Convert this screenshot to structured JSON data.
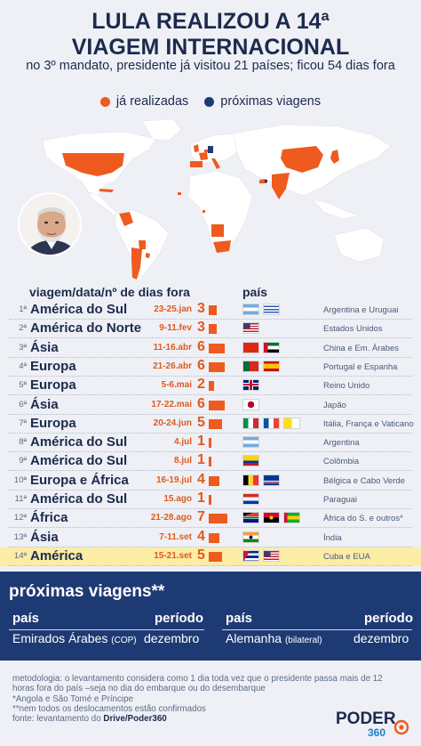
{
  "title_line1": "LULA REALIZOU A 14ª",
  "title_line2": "VIAGEM INTERNACIONAL",
  "subtitle": "no 3º mandato, presidente já visitou 21 países; ficou 54 dias fora",
  "legend": {
    "done": "já realizadas",
    "upcoming": "próximas viagens"
  },
  "colors": {
    "done": "#ef5a1e",
    "upcoming": "#1e3a74",
    "highlight": "#fbeca6"
  },
  "table_head": {
    "left": "viagem/data/nº de dias fora",
    "right": "país"
  },
  "trips": [
    {
      "num": "1ª",
      "dest": "América do Sul",
      "date": "23-25.jan",
      "days": "3",
      "flags": [
        "flag-argentina",
        "flag-uruguay"
      ],
      "country": "Argentina e Uruguai"
    },
    {
      "num": "2ª",
      "dest": "América do Norte",
      "date": "9-11.fev",
      "days": "3",
      "flags": [
        "flag-usa"
      ],
      "country": "Estados Unidos"
    },
    {
      "num": "3ª",
      "dest": "Ásia",
      "date": "11-16.abr",
      "days": "6",
      "flags": [
        "flag-china",
        "flag-uae"
      ],
      "country": "China e Em. Árabes"
    },
    {
      "num": "4ª",
      "dest": "Europa",
      "date": "21-26.abr",
      "days": "6",
      "flags": [
        "flag-portugal",
        "flag-spain"
      ],
      "country": "Portugal e Espanha"
    },
    {
      "num": "5ª",
      "dest": "Europa",
      "date": "5-6.mai",
      "days": "2",
      "flags": [
        "flag-uk"
      ],
      "country": "Reino Unido"
    },
    {
      "num": "6ª",
      "dest": "Ásia",
      "date": "17-22.mai",
      "days": "6",
      "flags": [
        "flag-japan"
      ],
      "country": "Japão"
    },
    {
      "num": "7ª",
      "dest": "Europa",
      "date": "20-24.jun",
      "days": "5",
      "flags": [
        "flag-italy",
        "flag-france",
        "flag-vatican"
      ],
      "country": "Itália, França e Vaticano"
    },
    {
      "num": "8ª",
      "dest": "América do Sul",
      "date": "4.jul",
      "days": "1",
      "flags": [
        "flag-argentina"
      ],
      "country": "Argentina"
    },
    {
      "num": "9ª",
      "dest": "América do Sul",
      "date": "8.jul",
      "days": "1",
      "flags": [
        "flag-colombia"
      ],
      "country": "Colômbia"
    },
    {
      "num": "10ª",
      "dest": "Europa e África",
      "date": "16-19.jul",
      "days": "4",
      "flags": [
        "flag-belgium",
        "flag-cape-verde"
      ],
      "country": "Bélgica e Cabo Verde"
    },
    {
      "num": "11ª",
      "dest": "América do Sul",
      "date": "15.ago",
      "days": "1",
      "flags": [
        "flag-paraguay"
      ],
      "country": "Paraguai"
    },
    {
      "num": "12ª",
      "dest": "África",
      "date": "21-28.ago",
      "days": "7",
      "flags": [
        "flag-south-africa",
        "flag-angola",
        "flag-sao-tome"
      ],
      "country": "África do S. e outros*"
    },
    {
      "num": "13ª",
      "dest": "Ásia",
      "date": "7-11.set",
      "days": "4",
      "flags": [
        "flag-india"
      ],
      "country": "Índia"
    },
    {
      "num": "14ª",
      "dest": "América",
      "date": "15-21.set",
      "days": "5",
      "flags": [
        "flag-cuba",
        "flag-usa"
      ],
      "country": "Cuba e EUA"
    }
  ],
  "next_trips": {
    "title": "próximas viagens**",
    "col_country": "país",
    "col_period": "período",
    "items": [
      {
        "country": "Emirados Árabes",
        "note": "(COP)",
        "period": "dezembro"
      },
      {
        "country": "Alemanha",
        "note": "(bilateral)",
        "period": "dezembro"
      }
    ]
  },
  "footnotes": {
    "method": "metodologia: o levantamento considera como 1 dia toda vez que o presidente passa mais de 12 horas fora do país –seja no dia do embarque ou do desembarque",
    "note1": "*Angola e São Tomé e Príncipe",
    "note2": "**nem todos os deslocamentos estão confirmados",
    "source_prefix": "fonte: levantamento do ",
    "source": "Drive/Poder360"
  },
  "logo": {
    "name": "PODER",
    "number": "360"
  }
}
